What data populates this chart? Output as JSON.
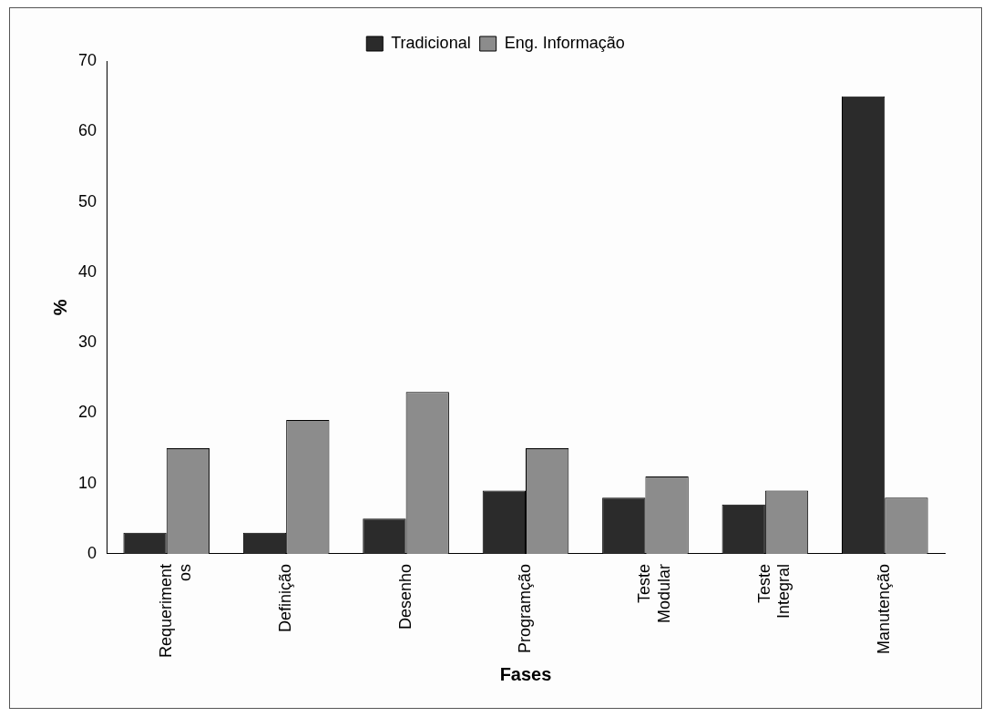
{
  "chart_data": {
    "type": "bar",
    "xlabel": "Fases",
    "ylabel": "%",
    "categories": [
      "Requeriment os",
      "Definição",
      "Desenho",
      "Programção",
      "Teste Modular",
      "Teste Integral",
      "Manutenção"
    ],
    "series": [
      {
        "name": "Tradicional",
        "color": "#2b2b2b",
        "values": [
          3,
          3,
          5,
          9,
          8,
          7,
          65
        ]
      },
      {
        "name": "Eng. Informação",
        "color": "#8c8c8c",
        "values": [
          15,
          19,
          23,
          15,
          11,
          9,
          8
        ]
      }
    ],
    "ylim": [
      0,
      70
    ],
    "yticks": [
      0,
      10,
      20,
      30,
      40,
      50,
      60,
      70
    ],
    "grid": false,
    "legend": "top"
  }
}
